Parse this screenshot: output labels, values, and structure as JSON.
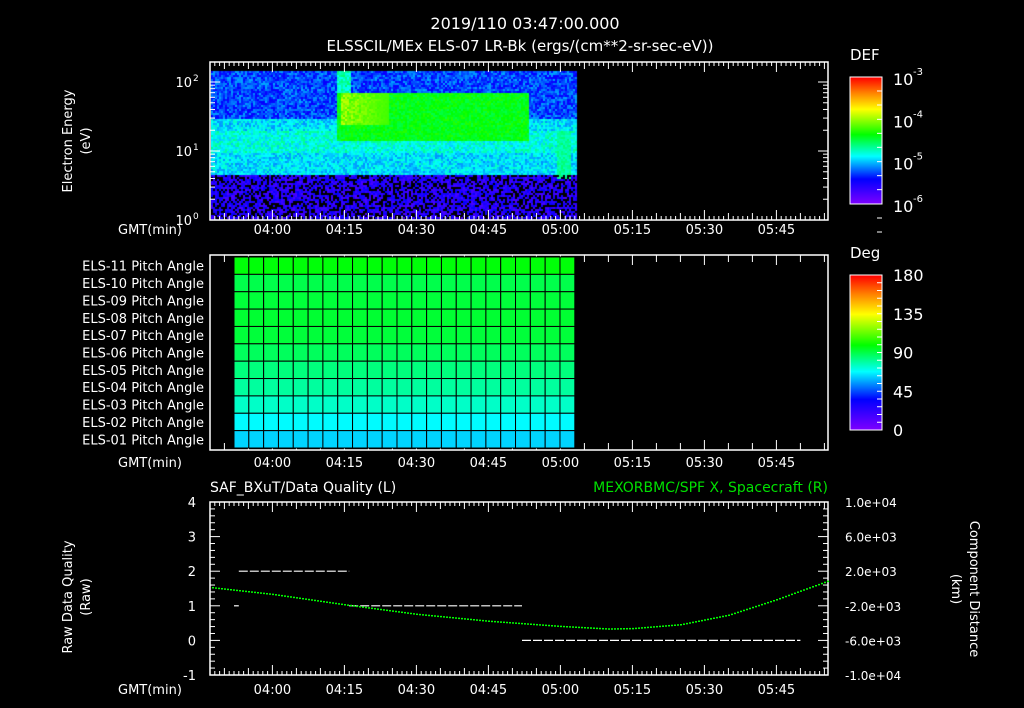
{
  "header": {
    "timestamp": "2019/110 03:47:00.000",
    "title": "ELSSCIL/MEx ELS-07 LR-Bk  (ergs/(cm**2-sr-sec-eV))"
  },
  "time_axis": {
    "label": "GMT(min)",
    "ticks": [
      "04:00",
      "04:15",
      "04:30",
      "04:45",
      "05:00",
      "05:15",
      "05:30",
      "05:45"
    ],
    "start": "03:47",
    "end": "05:56"
  },
  "chart_data": [
    {
      "type": "heatmap",
      "name": "spectrogram",
      "title": "ELSSCIL/MEx ELS-07 LR-Bk  (ergs/(cm**2-sr-sec-eV))",
      "ylabel": [
        "Electron Energy",
        "(eV)"
      ],
      "yscale": "log",
      "ylim": [
        1,
        195
      ],
      "ytick_labels": [
        "10^0",
        "10^1",
        "10^2"
      ],
      "data_time_range": [
        "03:47",
        "05:03"
      ],
      "colorbar": {
        "title": "DEF",
        "scale": "log",
        "range": [
          1e-06,
          0.001
        ],
        "tick_labels": [
          {
            "base": "10",
            "exp": "-3"
          },
          {
            "base": "10",
            "exp": "-4"
          },
          {
            "base": "10",
            "exp": "-5"
          },
          {
            "base": "10",
            "exp": "-6"
          }
        ]
      },
      "features": [
        {
          "desc": "background",
          "energy_eV": [
            5,
            30
          ],
          "def": 1e-05
        },
        {
          "desc": "enhancement",
          "time": [
            "04:13",
            "04:53"
          ],
          "energy_eV": [
            14,
            70
          ],
          "def": 0.0001
        },
        {
          "desc": "peak",
          "time": [
            "04:14",
            "04:24"
          ],
          "energy_eV": [
            25,
            70
          ],
          "def": 0.00025
        }
      ]
    },
    {
      "type": "heatmap",
      "name": "pitch-angle",
      "rows": [
        "ELS-11 Pitch Angle",
        "ELS-10 Pitch Angle",
        "ELS-09 Pitch Angle",
        "ELS-08 Pitch Angle",
        "ELS-07 Pitch Angle",
        "ELS-06 Pitch Angle",
        "ELS-05 Pitch Angle",
        "ELS-04 Pitch Angle",
        "ELS-03 Pitch Angle",
        "ELS-02 Pitch Angle",
        "ELS-01 Pitch Angle"
      ],
      "values_deg": [
        98,
        90,
        92,
        93,
        92,
        88,
        84,
        80,
        75,
        68,
        63
      ],
      "data_time_range": [
        "03:52",
        "05:03"
      ],
      "colorbar": {
        "title": "Deg",
        "range": [
          0,
          180
        ],
        "tick_labels": [
          "180",
          "135",
          "90",
          "45",
          "0"
        ]
      }
    },
    {
      "type": "line",
      "name": "quality-and-position",
      "title_left": "SAF_BXuT/Data Quality (L)",
      "title_right": "MEXORBMC/SPF X, Spacecraft (R)",
      "ylabel_left": [
        "Raw Data Quality",
        "(Raw)"
      ],
      "ylabel_right": [
        "Component Distance",
        "(km)"
      ],
      "ylim_left": [
        -1,
        4
      ],
      "ytick_left": [
        "4",
        "3",
        "2",
        "1",
        "0",
        "-1"
      ],
      "ylim_right": [
        -10000,
        10000
      ],
      "ytick_right": [
        "1.0e+04",
        "6.0e+03",
        "2.0e+03",
        "-2.0e+03",
        "-6.0e+03",
        "-1.0e+04"
      ],
      "series": [
        {
          "name": "Data Quality",
          "color": "#ffffff",
          "segments": [
            {
              "start": "03:52",
              "end": "03:53",
              "value": 1
            },
            {
              "start": "03:53",
              "end": "04:16",
              "value": 2
            },
            {
              "start": "04:16",
              "end": "04:52",
              "value": 1
            },
            {
              "start": "04:52",
              "end": "05:50",
              "value": 0
            }
          ]
        },
        {
          "name": "SPF X",
          "color": "#00ff00",
          "points": [
            [
              "03:47",
              200
            ],
            [
              "04:00",
              -600
            ],
            [
              "04:15",
              -1800
            ],
            [
              "04:30",
              -2900
            ],
            [
              "04:45",
              -3700
            ],
            [
              "05:00",
              -4300
            ],
            [
              "05:10",
              -4600
            ],
            [
              "05:15",
              -4550
            ],
            [
              "05:25",
              -4100
            ],
            [
              "05:35",
              -3000
            ],
            [
              "05:45",
              -1200
            ],
            [
              "05:56",
              1000
            ]
          ]
        }
      ]
    }
  ]
}
